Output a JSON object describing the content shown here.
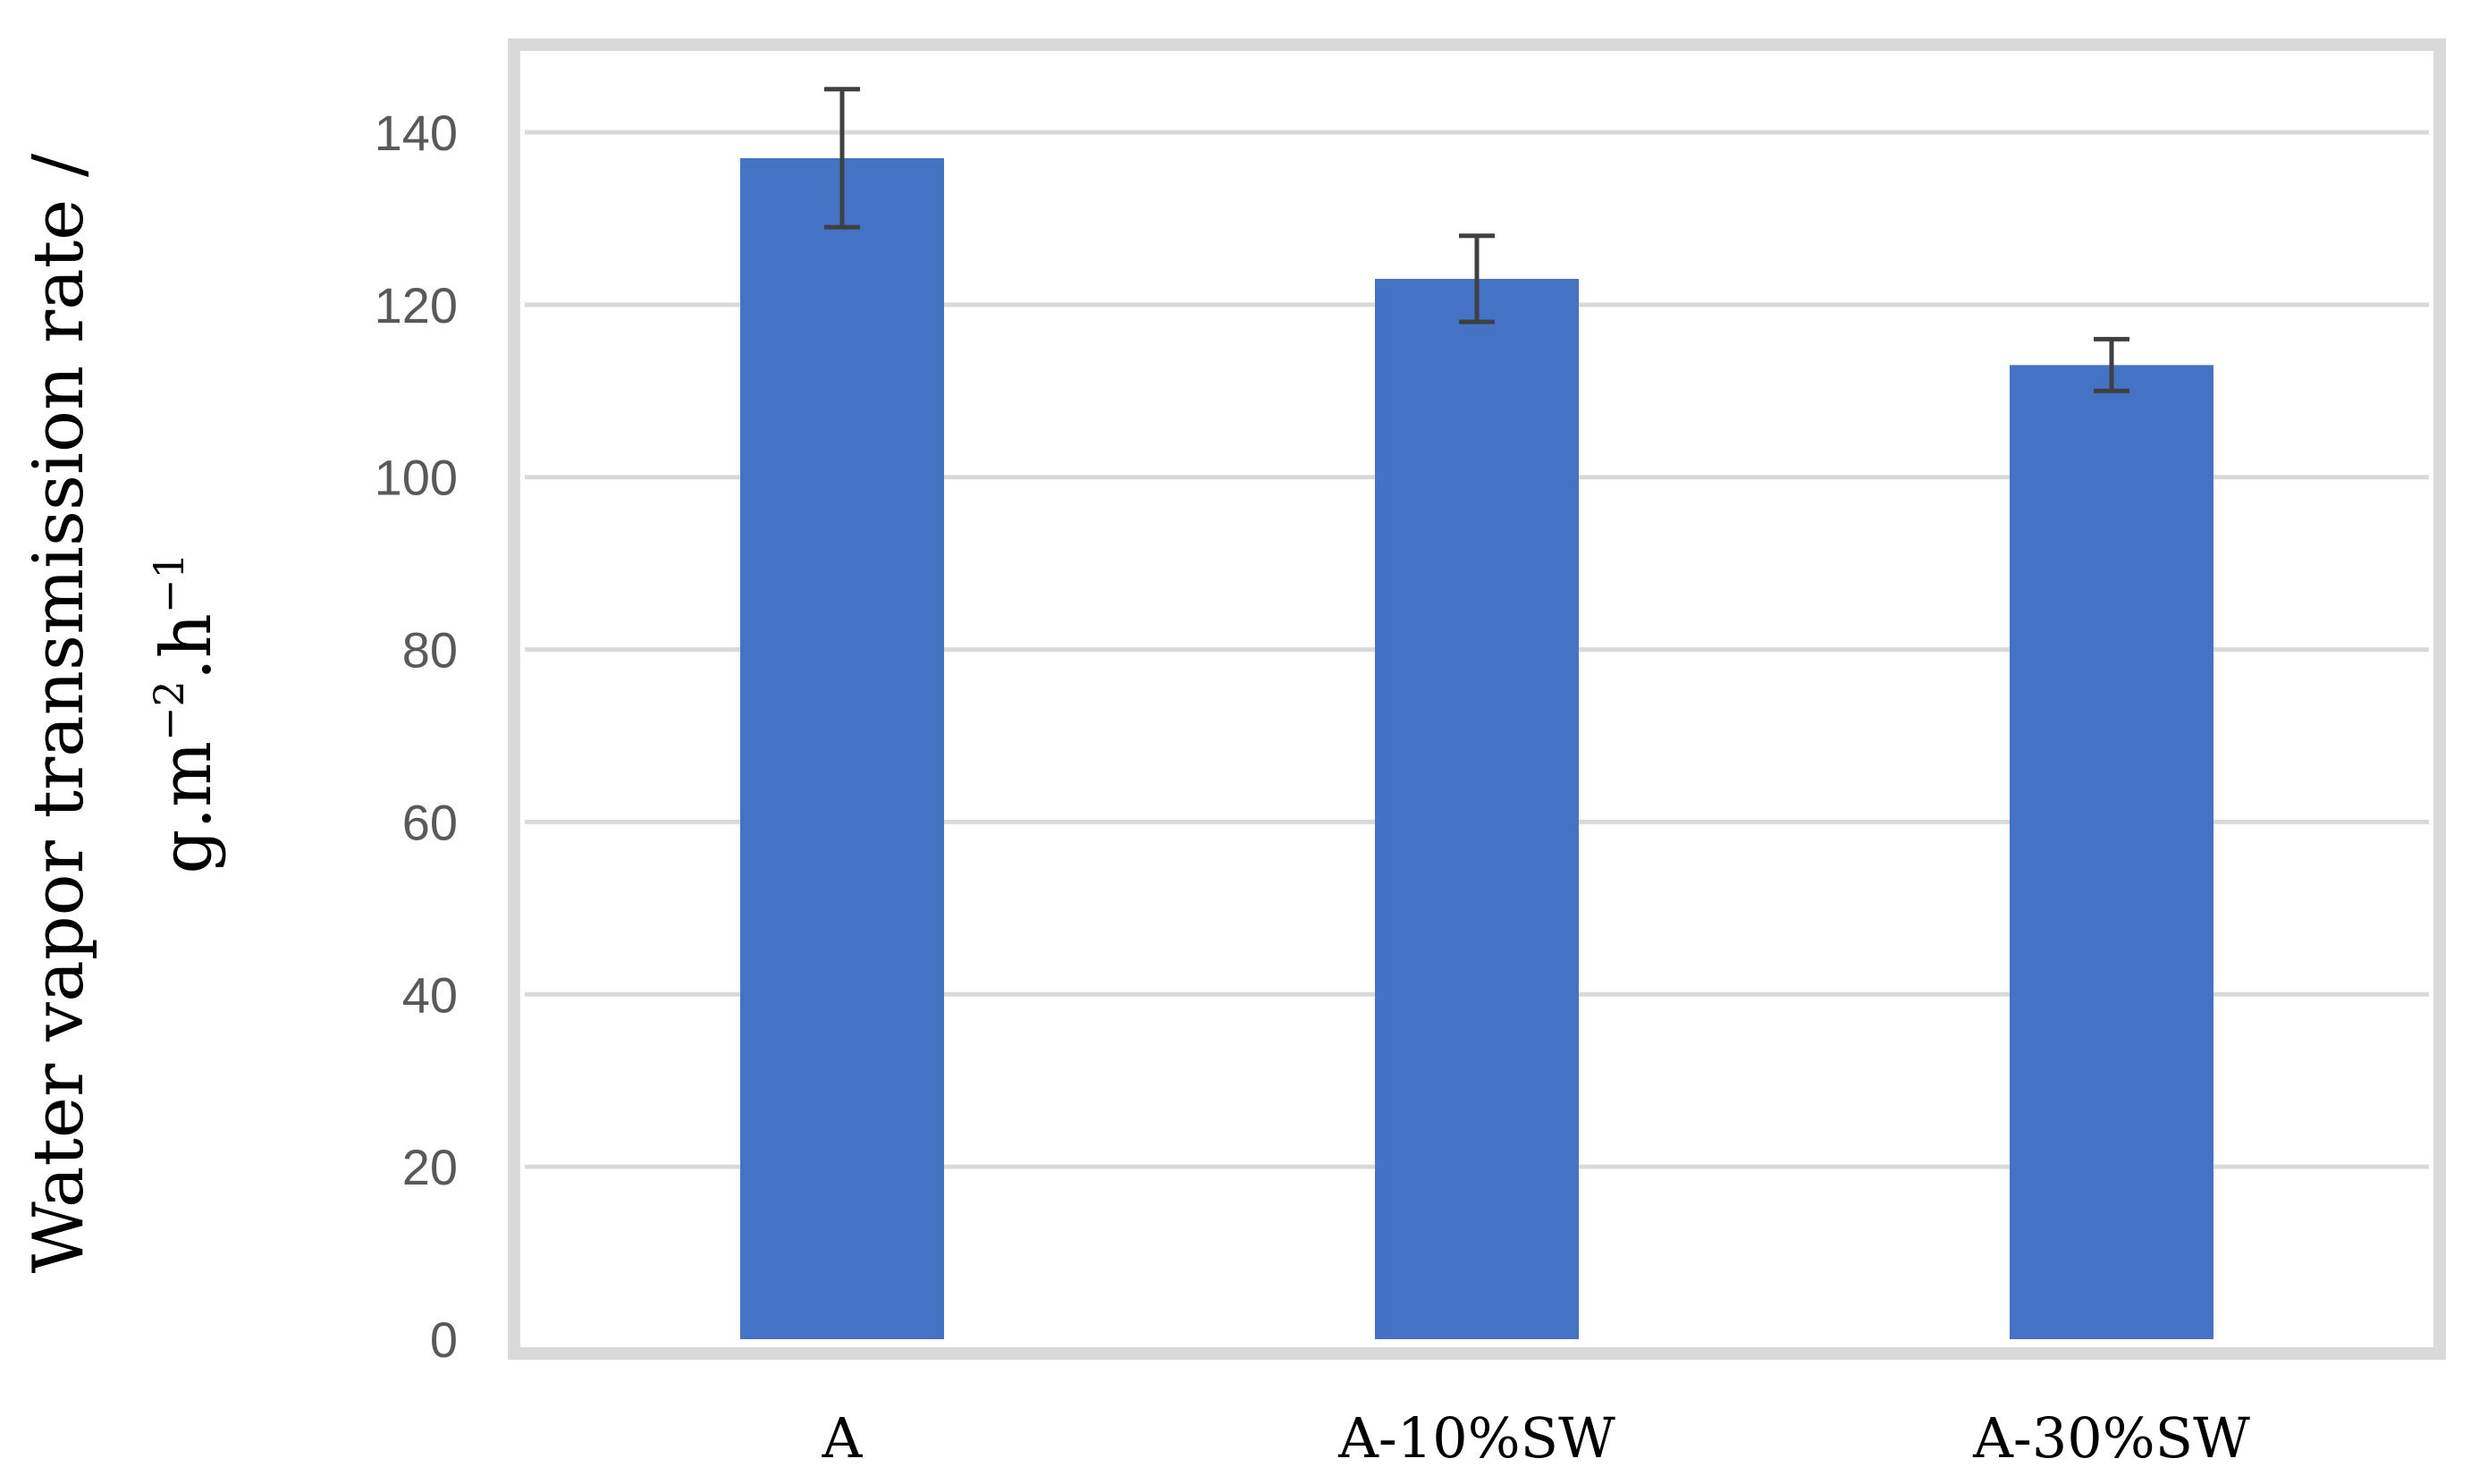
{
  "chart_data": {
    "type": "bar",
    "title": "",
    "categories": [
      "A",
      "A-10%SW",
      "A-30%SW"
    ],
    "series": [
      {
        "values": [
          137,
          123,
          113
        ],
        "error": [
          8,
          5,
          3
        ]
      }
    ],
    "ylabel": {
      "line1": "Water vapor transmission rate /",
      "line2_prefix": "g.m",
      "line2_exp1": "−2",
      "line2_mid": ".h",
      "line2_exp2": "−1"
    },
    "xlabel": "",
    "ylim": [
      0,
      150
    ],
    "yticks": [
      0,
      20,
      40,
      60,
      80,
      100,
      120,
      140
    ],
    "grid": true,
    "legend": "none",
    "colors": {
      "bar": "#4472C4",
      "error_bar": "#404040",
      "grid": "#D9D9D9",
      "plot_border": "#D9D9D9"
    }
  }
}
